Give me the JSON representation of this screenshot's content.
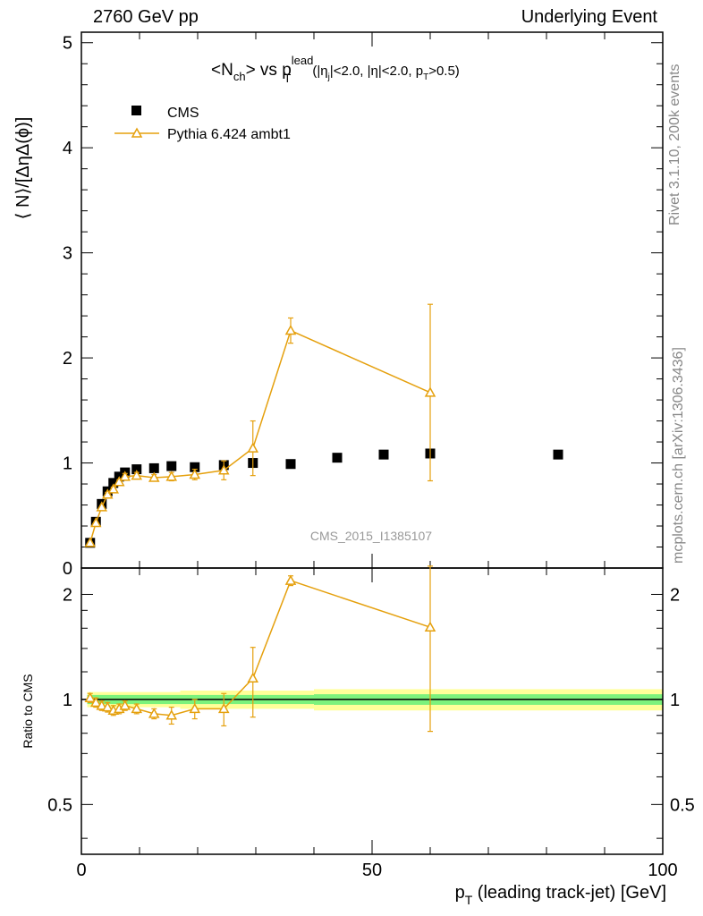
{
  "header": {
    "left": "2760 GeV pp",
    "right": "Underlying Event"
  },
  "side_text": {
    "rivet": "Rivet 3.1.10,  200k events",
    "mcplots": "mcplots.cern.ch [arXiv:1306.3436]"
  },
  "chart_data": [
    {
      "type": "scatter",
      "title": "<N_ch> vs p_T^lead (|η_j|<2.0, |η|<2.0, p_T>0.5)",
      "title_parts": {
        "a": "<N",
        "a_sub": "ch",
        "b": "> vs p",
        "b_sup": "lead",
        "b_sub": "T",
        "c": "(|η",
        "c_sub": "j",
        "d": "|<2.0, |η|<2.0, p",
        "d_sub": "T",
        "e": ">0.5)"
      },
      "ylabel": "⟨ N⟩/[ΔηΔ(ϕ)]",
      "watermark": "CMS_2015_I1385107",
      "xlim": [
        0,
        100
      ],
      "ylim": [
        0,
        5.1
      ],
      "y_ticks": [
        0,
        1,
        2,
        3,
        4,
        5
      ],
      "y_tick_labels": [
        "0",
        "1",
        "2",
        "3",
        "4",
        "5"
      ],
      "legend_position": "top-left",
      "series": [
        {
          "name": "CMS",
          "marker": "filled-square",
          "color": "#000000",
          "x": [
            1.5,
            2.5,
            3.5,
            4.5,
            5.5,
            6.5,
            7.5,
            9.5,
            12.5,
            15.5,
            19.5,
            24.5,
            29.5,
            36,
            44,
            52,
            60,
            82
          ],
          "y": [
            0.24,
            0.44,
            0.61,
            0.73,
            0.81,
            0.87,
            0.91,
            0.94,
            0.95,
            0.97,
            0.96,
            0.98,
            1.0,
            0.99,
            1.05,
            1.08,
            1.09,
            1.08
          ]
        },
        {
          "name": "Pythia 6.424 ambt1",
          "marker": "open-triangle",
          "color": "#e5a00d",
          "x": [
            1.5,
            2.5,
            3.5,
            4.5,
            5.5,
            6.5,
            7.5,
            9.5,
            12.5,
            15.5,
            19.5,
            24.5,
            29.5,
            36,
            60
          ],
          "y": [
            0.24,
            0.43,
            0.58,
            0.7,
            0.75,
            0.82,
            0.87,
            0.88,
            0.86,
            0.87,
            0.89,
            0.93,
            1.14,
            2.26,
            1.67
          ],
          "err": [
            0.01,
            0.01,
            0.01,
            0.02,
            0.02,
            0.02,
            0.03,
            0.03,
            0.03,
            0.04,
            0.05,
            0.09,
            0.26,
            0.12,
            0.84
          ]
        }
      ]
    },
    {
      "type": "scatter",
      "ylabel": "Ratio to CMS",
      "xlabel": "p_T (leading track-jet) [GeV]",
      "xlabel_parts": {
        "a": "p",
        "a_sub": "T",
        "b": " (leading track-jet) [GeV]"
      },
      "xlim": [
        0,
        100
      ],
      "ylim": [
        0.36,
        2.38
      ],
      "x_ticks": [
        0,
        50,
        100
      ],
      "x_tick_labels": [
        "0",
        "50",
        "100"
      ],
      "y_ticks": [
        0.5,
        1,
        2
      ],
      "y_tick_labels": [
        "0.5",
        "1",
        "2"
      ],
      "reference_line": 1,
      "uncertainty_bands": [
        {
          "name": "stat",
          "color": "#7cf27c",
          "bins": [
            [
              1,
              40,
              0.97,
              1.03
            ],
            [
              40,
              100,
              0.965,
              1.035
            ]
          ]
        },
        {
          "name": "total",
          "color": "#ffff99",
          "bins": [
            [
              1,
              17,
              0.95,
              1.05
            ],
            [
              17,
              40,
              0.94,
              1.06
            ],
            [
              40,
              100,
              0.93,
              1.07
            ]
          ]
        }
      ],
      "series": [
        {
          "name": "Pythia 6.424 ambt1",
          "marker": "open-triangle",
          "color": "#e5a00d",
          "x": [
            1.5,
            2.5,
            3.5,
            4.5,
            5.5,
            6.5,
            7.5,
            9.5,
            12.5,
            15.5,
            19.5,
            24.5,
            29.5,
            36,
            60
          ],
          "y": [
            1.01,
            0.98,
            0.96,
            0.95,
            0.93,
            0.94,
            0.96,
            0.94,
            0.91,
            0.9,
            0.94,
            0.94,
            1.15,
            2.19,
            1.61
          ],
          "err": [
            0.03,
            0.03,
            0.03,
            0.03,
            0.03,
            0.03,
            0.03,
            0.03,
            0.03,
            0.05,
            0.06,
            0.1,
            0.26,
            0.07,
            0.8
          ]
        }
      ]
    }
  ]
}
